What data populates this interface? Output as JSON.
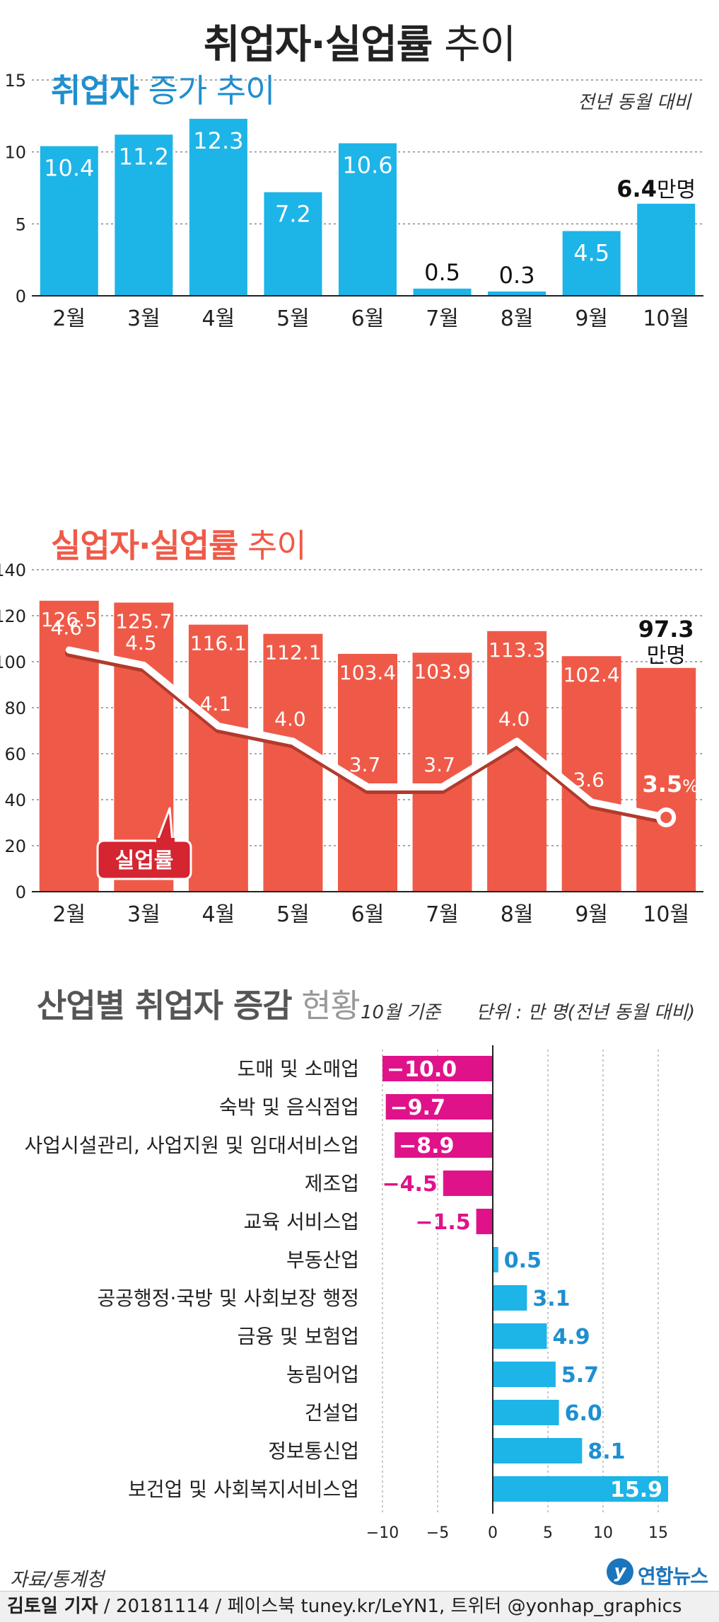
{
  "title": {
    "bold": "취업자·실업률",
    "light": "추이"
  },
  "chart_data": [
    {
      "type": "bar",
      "title_bold": "취업자",
      "title_light": "증가 추이",
      "note": "전년 동월 대비",
      "categories": [
        "2월",
        "3월",
        "4월",
        "5월",
        "6월",
        "7월",
        "8월",
        "9월",
        "10월"
      ],
      "values": [
        10.4,
        11.2,
        12.3,
        7.2,
        10.6,
        0.5,
        0.3,
        4.5,
        6.4
      ],
      "value_labels": [
        "10.4",
        "11.2",
        "12.3",
        "7.2",
        "10.6",
        "0.5",
        "0.3",
        "4.5",
        "6.4"
      ],
      "last_unit": "만명",
      "yticks": [
        0,
        5,
        10,
        15
      ],
      "ylim": [
        0,
        15
      ],
      "color": "#1db4e8"
    },
    {
      "type": "bar+line",
      "title_bold": "실업자·실업률",
      "title_light": "추이",
      "categories": [
        "2월",
        "3월",
        "4월",
        "5월",
        "6월",
        "7월",
        "8월",
        "9월",
        "10월"
      ],
      "bar_values": [
        126.5,
        125.7,
        116.1,
        112.1,
        103.4,
        103.9,
        113.3,
        102.4,
        97.3
      ],
      "bar_labels": [
        "126.5",
        "125.7",
        "116.1",
        "112.1",
        "103.4",
        "103.9",
        "113.3",
        "102.4",
        "97.3"
      ],
      "bar_last_unit": "만명",
      "line_values": [
        4.6,
        4.5,
        4.1,
        4.0,
        3.7,
        3.7,
        4.0,
        3.6,
        3.5
      ],
      "line_labels": [
        "4.6",
        "4.5",
        "4.1",
        "4.0",
        "3.7",
        "3.7",
        "4.0",
        "3.6",
        "3.5"
      ],
      "line_last_unit": "%",
      "line_name": "실업률",
      "yticks": [
        0,
        20,
        40,
        60,
        80,
        100,
        120,
        140
      ],
      "ylim": [
        0,
        140
      ],
      "color": "#ef5a48",
      "callout_color": "#d42531"
    },
    {
      "type": "hbar",
      "title_bold": "산업별 취업자 증감",
      "title_light": "현황",
      "basis": "10월 기준",
      "unit": "단위 : 만 명(전년 동월 대비)",
      "categories": [
        "도매 및 소매업",
        "숙박 및 음식점업",
        "사업시설관리, 사업지원 및 임대서비스업",
        "제조업",
        "교육 서비스업",
        "부동산업",
        "공공행정·국방 및 사회보장 행정",
        "금융 및 보험업",
        "농림어업",
        "건설업",
        "정보통신업",
        "보건업 및 사회복지서비스업"
      ],
      "values": [
        -10.0,
        -9.7,
        -8.9,
        -4.5,
        -1.5,
        0.5,
        3.1,
        4.9,
        5.7,
        6.0,
        8.1,
        15.9
      ],
      "value_labels": [
        "−10.0",
        "−9.7",
        "−8.9",
        "−4.5",
        "−1.5",
        "0.5",
        "3.1",
        "4.9",
        "5.7",
        "6.0",
        "8.1",
        "15.9"
      ],
      "xticks": [
        -10,
        -5,
        0,
        5,
        10,
        15
      ],
      "xtick_labels": [
        "−10",
        "−5",
        "0",
        "5",
        "10",
        "15"
      ],
      "xlim": [
        -10,
        16
      ],
      "neg_color": "#e0128a",
      "pos_color": "#1db4e8"
    }
  ],
  "footer": {
    "source": "자료/통계청",
    "credit_bold": "김토일 기자",
    "credit_rest": " / 20181114 / 페이스북 tuney.kr/LeYN1, 트위터 @yonhap_graphics",
    "logo_mark": "y",
    "logo_text": "연합뉴스"
  }
}
